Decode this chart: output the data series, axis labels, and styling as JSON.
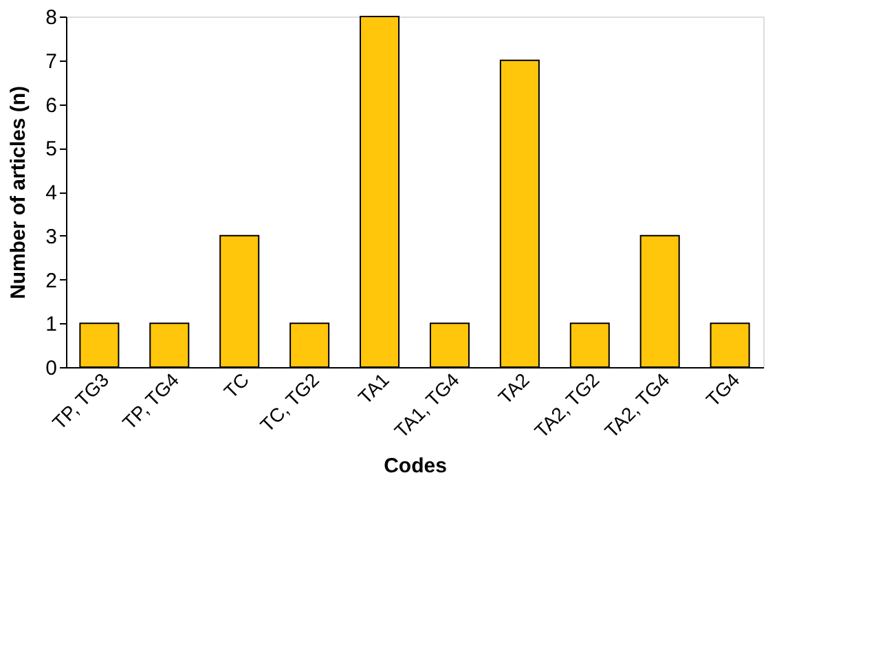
{
  "chart_data": {
    "type": "bar",
    "categories": [
      "TP, TG3",
      "TP, TG4",
      "TC",
      "TC, TG2",
      "TA1",
      "TA1, TG4",
      "TA2",
      "TA2, TG2",
      "TA2, TG4",
      "TG4"
    ],
    "values": [
      1,
      1,
      3,
      1,
      8,
      1,
      7,
      1,
      3,
      1
    ],
    "color": "#ffc60b",
    "xlabel": "Codes",
    "ylabel": "Number of articles (n)",
    "ylim": [
      0,
      8
    ],
    "yticks": [
      0,
      1,
      2,
      3,
      4,
      5,
      6,
      7,
      8
    ]
  }
}
